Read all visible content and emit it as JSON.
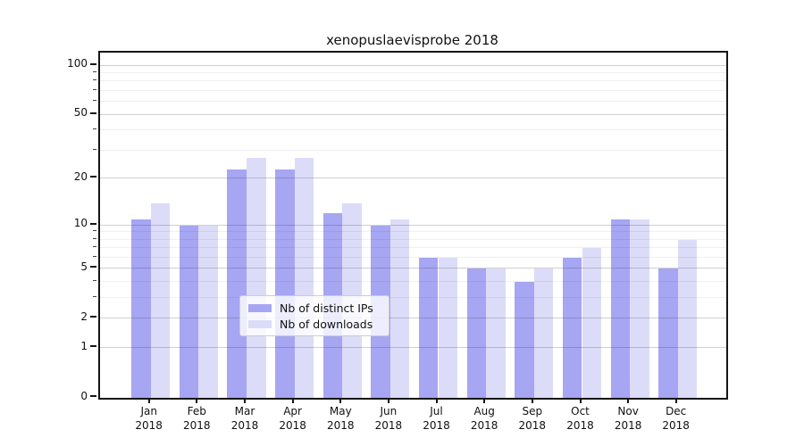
{
  "title": "xenopuslaevisprobe 2018",
  "chart_data": {
    "type": "bar",
    "title": "xenopuslaevisprobe 2018",
    "categories": [
      "Jan",
      "Feb",
      "Mar",
      "Apr",
      "May",
      "Jun",
      "Jul",
      "Aug",
      "Sep",
      "Oct",
      "Nov",
      "Dec"
    ],
    "year_label": "2018",
    "series": [
      {
        "name": "Nb of distinct IPs",
        "color": "#a6a6f2",
        "values": [
          11,
          10,
          23,
          23,
          12,
          10,
          6,
          5,
          4,
          6,
          11,
          5
        ]
      },
      {
        "name": "Nb of downloads",
        "color": "#dcdcf9",
        "values": [
          14,
          10,
          27,
          27,
          14,
          11,
          6,
          5,
          5,
          7,
          11,
          8
        ]
      }
    ],
    "y_axis": {
      "scale": "log1p",
      "ticks": [
        100,
        50,
        20,
        10,
        5,
        2,
        1,
        0
      ],
      "minor_ticks": [
        3,
        4,
        6,
        7,
        8,
        9,
        30,
        40,
        60,
        70,
        80,
        90
      ],
      "ylim": [
        0,
        118
      ]
    },
    "xlabel": "",
    "ylabel": "",
    "grid": true,
    "legend_position": "inside-bottom-center"
  }
}
